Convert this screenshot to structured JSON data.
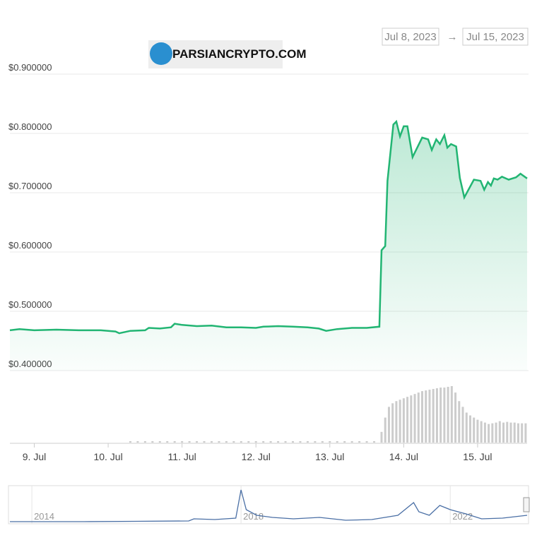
{
  "range": {
    "from": "Jul 8, 2023",
    "arrow": "→",
    "to": "Jul 15, 2023"
  },
  "watermark": "PARSIANCRYPTO.COM",
  "chart_data": [
    {
      "type": "line",
      "color": "#22b573",
      "xlim": [
        8.67,
        15.67
      ],
      "ylim": [
        0.4,
        0.9
      ],
      "yticks": [
        {
          "value": 0.4,
          "label": "$0.400000"
        },
        {
          "value": 0.5,
          "label": "$0.500000"
        },
        {
          "value": 0.6,
          "label": "$0.600000"
        },
        {
          "value": 0.7,
          "label": "$0.700000"
        },
        {
          "value": 0.8,
          "label": "$0.800000"
        },
        {
          "value": 0.9,
          "label": "$0.900000"
        }
      ],
      "xticks": [
        {
          "value": 9,
          "label": "9. Jul"
        },
        {
          "value": 10,
          "label": "10. Jul"
        },
        {
          "value": 11,
          "label": "11. Jul"
        },
        {
          "value": 12,
          "label": "12. Jul"
        },
        {
          "value": 13,
          "label": "13. Jul"
        },
        {
          "value": 14,
          "label": "14. Jul"
        },
        {
          "value": 15,
          "label": "15. Jul"
        }
      ],
      "grid": true,
      "x": [
        8.67,
        8.8,
        9.0,
        9.3,
        9.6,
        9.9,
        10.1,
        10.15,
        10.3,
        10.5,
        10.55,
        10.7,
        10.85,
        10.9,
        11.0,
        11.2,
        11.4,
        11.6,
        11.8,
        12.0,
        12.1,
        12.3,
        12.5,
        12.7,
        12.85,
        12.95,
        13.1,
        13.3,
        13.5,
        13.67,
        13.7,
        13.75,
        13.78,
        13.86,
        13.9,
        13.95,
        14.0,
        14.05,
        14.12,
        14.25,
        14.33,
        14.38,
        14.44,
        14.49,
        14.55,
        14.59,
        14.64,
        14.71,
        14.76,
        14.82,
        14.95,
        15.04,
        15.09,
        15.14,
        15.18,
        15.22,
        15.27,
        15.33,
        15.42,
        15.52,
        15.58,
        15.67
      ],
      "values": [
        0.468,
        0.47,
        0.468,
        0.469,
        0.468,
        0.468,
        0.466,
        0.463,
        0.467,
        0.468,
        0.472,
        0.471,
        0.473,
        0.479,
        0.477,
        0.475,
        0.476,
        0.473,
        0.473,
        0.472,
        0.474,
        0.475,
        0.474,
        0.473,
        0.471,
        0.467,
        0.47,
        0.472,
        0.472,
        0.474,
        0.603,
        0.61,
        0.72,
        0.815,
        0.82,
        0.795,
        0.812,
        0.812,
        0.76,
        0.793,
        0.79,
        0.772,
        0.79,
        0.782,
        0.797,
        0.776,
        0.782,
        0.778,
        0.725,
        0.692,
        0.722,
        0.72,
        0.705,
        0.718,
        0.712,
        0.724,
        0.722,
        0.727,
        0.722,
        0.726,
        0.732,
        0.724
      ]
    },
    {
      "type": "volume",
      "color": "#cccccc",
      "x": [
        10.3,
        10.4,
        10.5,
        10.6,
        10.7,
        10.8,
        10.9,
        11.0,
        11.1,
        11.2,
        11.3,
        11.4,
        11.5,
        11.6,
        11.7,
        11.8,
        11.9,
        12.0,
        12.1,
        12.2,
        12.3,
        12.4,
        12.5,
        12.6,
        12.7,
        12.8,
        12.9,
        13.0,
        13.1,
        13.2,
        13.3,
        13.4,
        13.5,
        13.6,
        13.7,
        13.75,
        13.8,
        13.85,
        13.9,
        13.95,
        14.0,
        14.05,
        14.1,
        14.15,
        14.2,
        14.25,
        14.3,
        14.35,
        14.4,
        14.45,
        14.5,
        14.55,
        14.6,
        14.65,
        14.7,
        14.75,
        14.8,
        14.85,
        14.9,
        14.95,
        15.0,
        15.05,
        15.1,
        15.15,
        15.2,
        15.25,
        15.3,
        15.35,
        15.4,
        15.45,
        15.5,
        15.55,
        15.6,
        15.65
      ],
      "values": [
        2,
        2,
        2,
        2,
        2,
        2,
        2,
        2,
        2,
        2,
        2,
        2,
        2,
        2,
        2,
        2,
        2,
        2,
        2,
        2,
        2,
        2,
        2,
        2,
        2,
        2,
        2,
        2,
        2,
        2,
        2,
        2,
        2,
        2,
        15,
        35,
        50,
        55,
        58,
        60,
        62,
        64,
        66,
        68,
        70,
        72,
        73,
        74,
        75,
        76,
        77,
        77,
        78,
        79,
        70,
        58,
        50,
        42,
        38,
        35,
        32,
        30,
        28,
        26,
        27,
        28,
        30,
        28,
        29,
        28,
        28,
        27,
        27,
        27
      ]
    },
    {
      "type": "navigator",
      "color": "#4a6fa5",
      "xlim": [
        2013.58,
        2023.47
      ],
      "xticks": [
        2014,
        2018,
        2022
      ],
      "x": [
        2013.58,
        2015,
        2016,
        2017,
        2017.1,
        2017.5,
        2017.9,
        2018.0,
        2018.1,
        2018.3,
        2018.6,
        2019,
        2019.5,
        2020,
        2020.5,
        2021.0,
        2021.3,
        2021.4,
        2021.6,
        2021.8,
        2022,
        2022.3,
        2022.6,
        2023,
        2023.47
      ],
      "values": [
        1,
        1,
        1.5,
        2,
        5,
        4,
        6,
        46,
        18,
        10,
        7,
        5,
        7,
        3,
        4,
        10,
        28,
        15,
        10,
        24,
        18,
        12,
        5,
        6,
        10
      ]
    }
  ]
}
